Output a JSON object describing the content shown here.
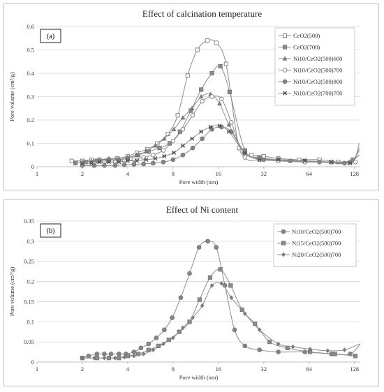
{
  "chart_data": [
    {
      "type": "line",
      "title": "Effect of calcination temperature",
      "panel_label": "(a)",
      "xlabel": "Pore width (nm)",
      "ylabel": "Pore volume (cm³/g)",
      "xscale": "log2",
      "xlim": [
        1,
        140
      ],
      "xticks": [
        1,
        2,
        4,
        8,
        16,
        32,
        64,
        128
      ],
      "ylim": [
        0,
        0.6
      ],
      "yticks": [
        0,
        0.1,
        0.2,
        0.3,
        0.4,
        0.5,
        0.6
      ],
      "grid": true,
      "legend_position": "top-right",
      "series": [
        {
          "name": "CeO2(500)",
          "marker": "square-open",
          "x": [
            1.7,
            2.0,
            2.3,
            2.6,
            3.0,
            3.4,
            4.0,
            4.6,
            5.4,
            6.3,
            7.4,
            8.6,
            10.0,
            11.6,
            13.5,
            15.5,
            18.0,
            22.0,
            26.5,
            32.0,
            40.0,
            55.0,
            75.0,
            100.0,
            120.0,
            138.0
          ],
          "y": [
            0.025,
            0.025,
            0.03,
            0.03,
            0.03,
            0.035,
            0.045,
            0.06,
            0.075,
            0.1,
            0.14,
            0.22,
            0.39,
            0.5,
            0.54,
            0.53,
            0.44,
            0.08,
            0.05,
            0.045,
            0.035,
            0.03,
            0.03,
            0.02,
            0.02,
            0.05
          ]
        },
        {
          "name": "CeO2(700)",
          "marker": "square-filled",
          "x": [
            1.8,
            2.1,
            2.5,
            2.9,
            3.4,
            4.0,
            4.7,
            5.5,
            6.5,
            7.6,
            8.9,
            10.5,
            12.3,
            14.5,
            16.5,
            19.0,
            24.0,
            30.0,
            40.0,
            60.0,
            90.0,
            125.0,
            138.0
          ],
          "y": [
            0.015,
            0.02,
            0.025,
            0.025,
            0.03,
            0.035,
            0.05,
            0.065,
            0.08,
            0.1,
            0.15,
            0.24,
            0.33,
            0.4,
            0.43,
            0.32,
            0.07,
            0.04,
            0.03,
            0.025,
            0.02,
            0.03,
            0.1
          ]
        },
        {
          "name": "Ni10/CeO2(500)600",
          "marker": "triangle-filled",
          "x": [
            2.0,
            2.3,
            2.6,
            3.0,
            3.5,
            4.0,
            4.6,
            5.3,
            6.1,
            7.0,
            8.1,
            9.3,
            10.7,
            12.3,
            14.2,
            16.3,
            18.8,
            24.0,
            30.0,
            40.0,
            60.0,
            90.0,
            120.0,
            138.0
          ],
          "y": [
            0.02,
            0.025,
            0.03,
            0.035,
            0.035,
            0.04,
            0.05,
            0.065,
            0.09,
            0.12,
            0.16,
            0.21,
            0.25,
            0.3,
            0.31,
            0.27,
            0.18,
            0.06,
            0.035,
            0.03,
            0.025,
            0.02,
            0.02,
            0.07
          ]
        },
        {
          "name": "Ni10/CeO2(500)700",
          "marker": "circle-open",
          "x": [
            2.0,
            2.4,
            2.8,
            3.3,
            3.8,
            4.4,
            5.1,
            5.9,
            6.9,
            8.0,
            9.3,
            10.8,
            12.5,
            14.5,
            16.8,
            19.5,
            24.0,
            30.0,
            40.0,
            60.0,
            90.0,
            130.0
          ],
          "y": [
            0.015,
            0.015,
            0.02,
            0.02,
            0.025,
            0.03,
            0.04,
            0.05,
            0.07,
            0.11,
            0.16,
            0.22,
            0.28,
            0.3,
            0.29,
            0.19,
            0.04,
            0.03,
            0.025,
            0.02,
            0.02,
            0.02
          ]
        },
        {
          "name": "Ni10/CeO2(500)800",
          "marker": "circle-filled",
          "x": [
            2.0,
            2.4,
            2.8,
            3.3,
            3.8,
            4.4,
            5.1,
            5.9,
            6.9,
            8.0,
            9.3,
            10.8,
            12.5,
            14.5,
            16.8,
            19.5,
            24.0,
            32.0,
            48.0,
            75.0,
            110.0,
            138.0
          ],
          "y": [
            0.005,
            0.005,
            0.005,
            0.005,
            0.008,
            0.01,
            0.012,
            0.015,
            0.02,
            0.03,
            0.05,
            0.08,
            0.12,
            0.16,
            0.17,
            0.15,
            0.06,
            0.03,
            0.025,
            0.02,
            0.015,
            0.05
          ]
        },
        {
          "name": "Ni10/CeO2(700)700",
          "marker": "x-star",
          "x": [
            2.0,
            2.3,
            2.6,
            3.0,
            3.5,
            4.0,
            4.6,
            5.3,
            6.1,
            7.0,
            8.1,
            9.3,
            10.7,
            12.3,
            14.2,
            16.3,
            18.8,
            24.0,
            30.0,
            40.0,
            60.0,
            90.0,
            120.0,
            138.0
          ],
          "y": [
            0.015,
            0.015,
            0.02,
            0.02,
            0.02,
            0.025,
            0.025,
            0.03,
            0.035,
            0.045,
            0.06,
            0.09,
            0.12,
            0.15,
            0.17,
            0.175,
            0.15,
            0.06,
            0.03,
            0.03,
            0.025,
            0.02,
            0.015,
            0.08
          ]
        }
      ]
    },
    {
      "type": "line",
      "title": "Effect of Ni content",
      "panel_label": "(b)",
      "xlabel": "Pore width (nm)",
      "ylabel": "Pore volume (cm³/g)",
      "xscale": "log2",
      "xlim": [
        1,
        140
      ],
      "xticks": [
        1,
        2,
        4,
        8,
        16,
        32,
        64,
        128
      ],
      "ylim": [
        0,
        0.35
      ],
      "yticks": [
        0,
        0.05,
        0.1,
        0.15,
        0.2,
        0.25,
        0.3,
        0.35
      ],
      "grid": true,
      "legend_position": "top-right",
      "series": [
        {
          "name": "Ni10/CeO2(500)700",
          "marker": "circle-filled",
          "x": [
            2.0,
            2.2,
            2.5,
            2.8,
            3.1,
            3.5,
            3.9,
            4.4,
            4.9,
            5.5,
            6.2,
            7.0,
            7.9,
            9.0,
            10.3,
            11.9,
            13.6,
            15.5,
            17.7,
            20.5,
            24.0,
            30.0,
            40.0,
            60.0,
            90.0,
            120.0,
            140.0
          ],
          "y": [
            0.01,
            0.015,
            0.02,
            0.02,
            0.02,
            0.02,
            0.02,
            0.025,
            0.035,
            0.045,
            0.06,
            0.08,
            0.11,
            0.16,
            0.22,
            0.285,
            0.3,
            0.285,
            0.19,
            0.08,
            0.04,
            0.03,
            0.025,
            0.025,
            0.02,
            0.02,
            0.045
          ]
        },
        {
          "name": "Ni15/CeO2(500)700",
          "marker": "square-filled",
          "x": [
            2.0,
            2.5,
            3.0,
            3.5,
            4.0,
            4.7,
            5.5,
            6.4,
            7.5,
            8.8,
            10.3,
            12.0,
            14.1,
            16.5,
            19.3,
            23.0,
            28.0,
            35.0,
            46.0,
            65.0,
            95.0,
            130.0
          ],
          "y": [
            0.01,
            0.01,
            0.01,
            0.01,
            0.015,
            0.02,
            0.03,
            0.04,
            0.055,
            0.075,
            0.1,
            0.155,
            0.21,
            0.23,
            0.19,
            0.13,
            0.095,
            0.05,
            0.035,
            0.025,
            0.02,
            0.015
          ]
        },
        {
          "name": "Ni20/CeO2(500)700",
          "marker": "diamond-filled",
          "x": [
            2.0,
            2.4,
            2.8,
            3.3,
            3.8,
            4.4,
            5.1,
            5.9,
            6.9,
            8.0,
            9.3,
            10.8,
            12.5,
            14.5,
            16.8,
            19.5,
            24.0,
            30.0,
            40.0,
            50.0,
            65.0,
            85.0,
            110.0,
            138.0
          ],
          "y": [
            0.01,
            0.01,
            0.01,
            0.01,
            0.012,
            0.015,
            0.02,
            0.03,
            0.045,
            0.06,
            0.085,
            0.11,
            0.14,
            0.19,
            0.195,
            0.16,
            0.12,
            0.08,
            0.045,
            0.038,
            0.032,
            0.028,
            0.03,
            0.045
          ]
        }
      ]
    }
  ]
}
